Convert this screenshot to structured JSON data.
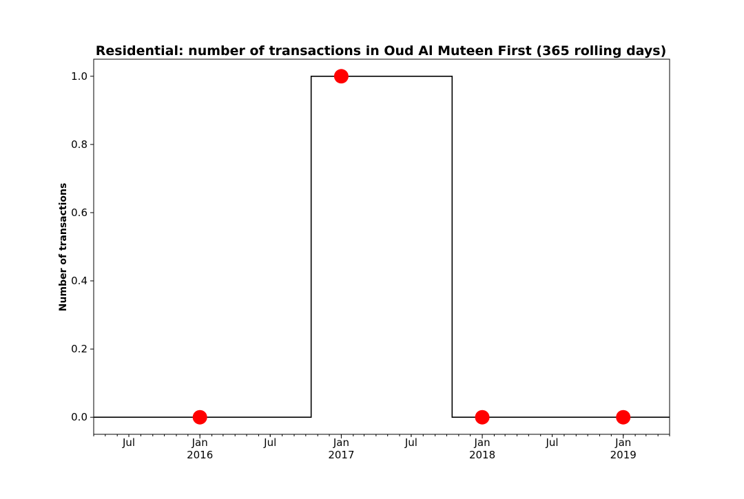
{
  "chart_data": {
    "type": "line",
    "title": "Residential: number of transactions in Oud Al Muteen First (365 rolling days)",
    "xlabel": "",
    "ylabel": "Number of transactions",
    "xlim": [
      "2015-04-01",
      "2019-05-01"
    ],
    "ylim": [
      -0.05,
      1.05
    ],
    "grid": false,
    "yticks": [
      {
        "value": 0.0,
        "label": "0.0"
      },
      {
        "value": 0.2,
        "label": "0.2"
      },
      {
        "value": 0.4,
        "label": "0.4"
      },
      {
        "value": 0.6,
        "label": "0.6"
      },
      {
        "value": 0.8,
        "label": "0.8"
      },
      {
        "value": 1.0,
        "label": "1.0"
      }
    ],
    "xticks_major": [
      {
        "date": "2016-01-01",
        "label": "Jan",
        "sublabel": "2016"
      },
      {
        "date": "2017-01-01",
        "label": "Jan",
        "sublabel": "2017"
      },
      {
        "date": "2018-01-01",
        "label": "Jan",
        "sublabel": "2018"
      },
      {
        "date": "2019-01-01",
        "label": "Jan",
        "sublabel": "2019"
      }
    ],
    "xticks_minor": [
      {
        "date": "2015-07-01",
        "label": "Jul"
      },
      {
        "date": "2016-07-01",
        "label": "Jul"
      },
      {
        "date": "2017-07-01",
        "label": "Jul"
      },
      {
        "date": "2018-07-01",
        "label": "Jul"
      }
    ],
    "series": [
      {
        "style": "step",
        "color": "#000000",
        "points": [
          {
            "x": "2015-04-01",
            "y": 0
          },
          {
            "x": "2016-10-15",
            "y": 0
          },
          {
            "x": "2016-10-15",
            "y": 1
          },
          {
            "x": "2017-10-15",
            "y": 1
          },
          {
            "x": "2017-10-15",
            "y": 0
          },
          {
            "x": "2019-05-01",
            "y": 0
          }
        ]
      },
      {
        "style": "markers",
        "color": "#ff0000",
        "points": [
          {
            "x": "2016-01-01",
            "y": 0
          },
          {
            "x": "2017-01-01",
            "y": 1
          },
          {
            "x": "2018-01-01",
            "y": 0
          },
          {
            "x": "2019-01-01",
            "y": 0
          }
        ]
      }
    ]
  }
}
